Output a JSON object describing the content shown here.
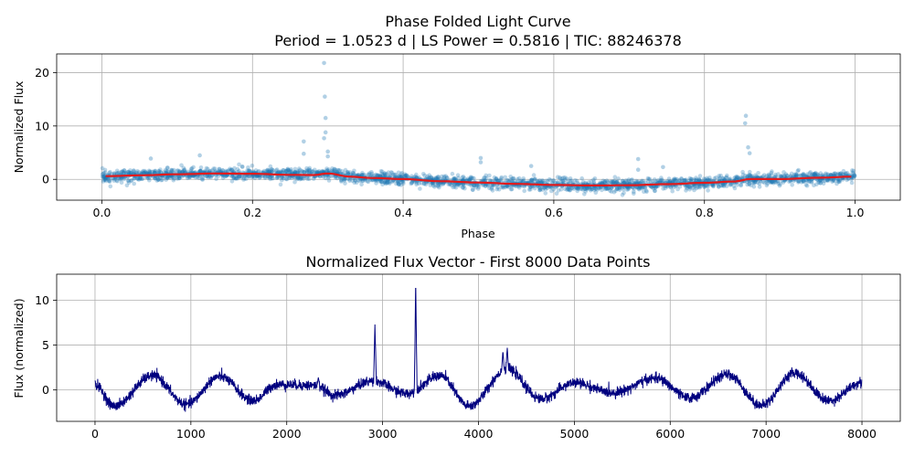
{
  "chart_data": [
    {
      "type": "scatter",
      "title": "Phase Folded Light Curve",
      "subtitle": "Period = 1.0523 d | LS Power = 0.5816 | TIC: 88246378",
      "xlabel": "Phase",
      "ylabel": "Normalized Flux",
      "xlim": [
        -0.06,
        1.06
      ],
      "ylim": [
        -3.9,
        23.5
      ],
      "xticks": [
        0.0,
        0.2,
        0.4,
        0.6,
        0.8,
        1.0
      ],
      "xtick_labels": [
        "0.0",
        "0.2",
        "0.4",
        "0.6",
        "0.8",
        "1.0"
      ],
      "yticks": [
        0,
        10,
        20
      ],
      "ytick_labels": [
        "0",
        "10",
        "20"
      ],
      "grid": true,
      "scatter_color": "#1f77b4",
      "binned_color": "#e31a1c",
      "binned_curve": {
        "x": [
          0.005,
          0.05,
          0.1,
          0.15,
          0.2,
          0.25,
          0.28,
          0.3,
          0.33,
          0.36,
          0.4,
          0.45,
          0.5,
          0.55,
          0.6,
          0.65,
          0.7,
          0.75,
          0.8,
          0.84,
          0.86,
          0.9,
          0.95,
          0.995
        ],
        "y": [
          0.6,
          0.75,
          0.95,
          1.1,
          1.05,
          0.85,
          0.8,
          1.1,
          0.5,
          0.25,
          0.05,
          -0.35,
          -0.6,
          -0.85,
          -1.05,
          -1.15,
          -1.1,
          -0.9,
          -0.65,
          -0.4,
          0.05,
          0.05,
          0.3,
          0.5
        ]
      },
      "outliers": [
        {
          "x": 0.295,
          "y": 21.8
        },
        {
          "x": 0.296,
          "y": 15.5
        },
        {
          "x": 0.297,
          "y": 11.5
        },
        {
          "x": 0.297,
          "y": 8.8
        },
        {
          "x": 0.295,
          "y": 7.7
        },
        {
          "x": 0.3,
          "y": 5.2
        },
        {
          "x": 0.3,
          "y": 4.3
        },
        {
          "x": 0.268,
          "y": 7.1
        },
        {
          "x": 0.268,
          "y": 4.8
        },
        {
          "x": 0.855,
          "y": 11.9
        },
        {
          "x": 0.854,
          "y": 10.5
        },
        {
          "x": 0.858,
          "y": 6.0
        },
        {
          "x": 0.86,
          "y": 4.9
        },
        {
          "x": 0.712,
          "y": 3.8
        },
        {
          "x": 0.712,
          "y": 1.8
        },
        {
          "x": 0.503,
          "y": 4.0
        },
        {
          "x": 0.503,
          "y": 3.2
        },
        {
          "x": 0.745,
          "y": 2.3
        },
        {
          "x": 0.13,
          "y": 4.5
        },
        {
          "x": 0.065,
          "y": 3.9
        },
        {
          "x": 0.57,
          "y": 2.5
        }
      ]
    },
    {
      "type": "line",
      "title": "Normalized Flux Vector - First 8000 Data Points",
      "xlabel": "",
      "ylabel": "Flux (normalized)",
      "xlim": [
        -400,
        8400
      ],
      "ylim": [
        -3.5,
        12.9
      ],
      "xticks": [
        0,
        1000,
        2000,
        3000,
        4000,
        5000,
        6000,
        7000,
        8000
      ],
      "xtick_labels": [
        "0",
        "1000",
        "2000",
        "3000",
        "4000",
        "5000",
        "6000",
        "7000",
        "8000"
      ],
      "yticks": [
        0,
        5,
        10
      ],
      "ytick_labels": [
        "0",
        "5",
        "10"
      ],
      "grid": true,
      "line_color": "#00007f",
      "n_points": 8000,
      "envelope_x": [
        0,
        200,
        600,
        950,
        1300,
        1650,
        1900,
        2300,
        2500,
        2900,
        3250,
        3600,
        3900,
        4300,
        4650,
        5000,
        5400,
        5850,
        6200,
        6600,
        6950,
        7300,
        7650,
        8000
      ],
      "envelope_y": [
        0.6,
        -1.8,
        1.6,
        -1.6,
        1.5,
        -1.2,
        0.6,
        0.5,
        -0.6,
        1.0,
        -0.4,
        1.6,
        -1.8,
        2.3,
        -1.0,
        0.8,
        -0.3,
        1.3,
        -0.9,
        1.7,
        -1.7,
        1.9,
        -1.2,
        0.8
      ],
      "spikes": [
        {
          "x": 2920,
          "y": 7.3
        },
        {
          "x": 3345,
          "y": 12.2
        },
        {
          "x": 4255,
          "y": 4.3
        },
        {
          "x": 4300,
          "y": 4.7
        },
        {
          "x": 2330,
          "y": 1.4
        }
      ]
    }
  ]
}
